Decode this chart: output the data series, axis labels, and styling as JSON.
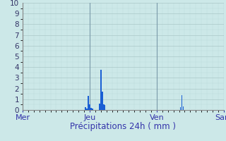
{
  "xlabel": "Précipitations 24h ( mm )",
  "background_color": "#cce8e8",
  "grid_color_major": "#aac8c8",
  "grid_color_minor": "#bbdada",
  "bar_color": "#1a5fd4",
  "xlim": [
    0,
    72
  ],
  "ylim": [
    0,
    10
  ],
  "yticks": [
    0,
    1,
    2,
    3,
    4,
    5,
    6,
    7,
    8,
    9,
    10
  ],
  "day_labels": [
    "Mer",
    "Jeu",
    "Ven",
    "Sam"
  ],
  "day_positions": [
    0,
    24,
    48,
    72
  ],
  "bars": [
    {
      "x": 22.5,
      "height": 0.25
    },
    {
      "x": 23.0,
      "height": 0.15
    },
    {
      "x": 23.5,
      "height": 1.3
    },
    {
      "x": 24.0,
      "height": 0.5
    },
    {
      "x": 24.5,
      "height": 0.2
    },
    {
      "x": 25.0,
      "height": 0.15
    },
    {
      "x": 27.5,
      "height": 0.6
    },
    {
      "x": 28.0,
      "height": 3.75
    },
    {
      "x": 28.5,
      "height": 1.7
    },
    {
      "x": 29.0,
      "height": 0.5
    },
    {
      "x": 29.5,
      "height": 0.45
    },
    {
      "x": 56.5,
      "height": 0.25
    },
    {
      "x": 57.0,
      "height": 1.35
    },
    {
      "x": 57.5,
      "height": 0.3
    }
  ],
  "bar_width": 0.4,
  "vline_color": "#7a9aaa",
  "tick_color": "#3333aa",
  "label_color": "#3333aa",
  "spine_color": "#888888",
  "xlabel_fontsize": 8.5,
  "ytick_fontsize": 7.5,
  "xtick_fontsize": 8
}
